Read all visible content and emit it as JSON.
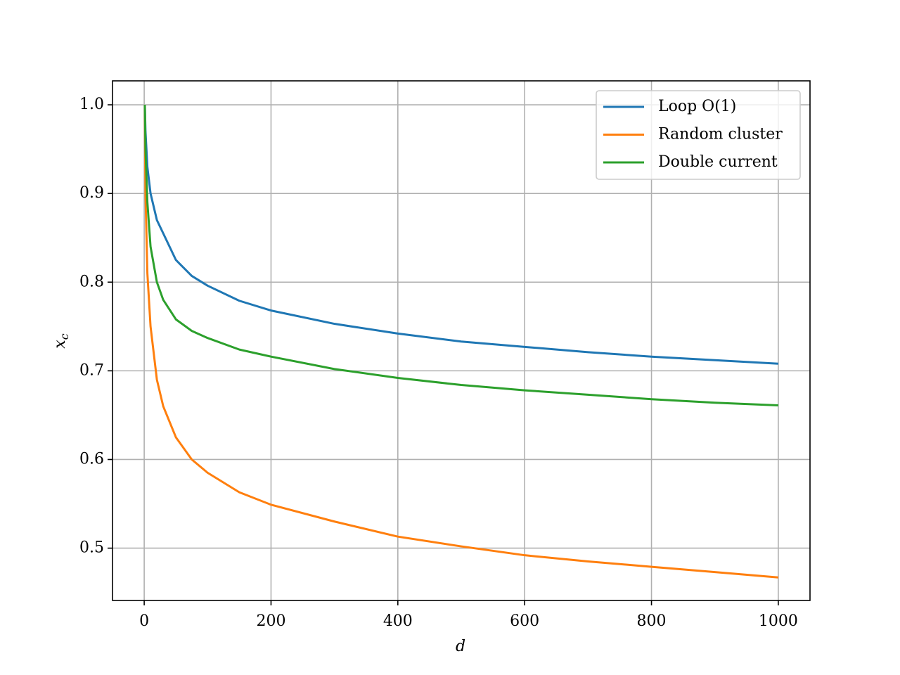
{
  "chart_data": {
    "type": "line",
    "xlabel": "d",
    "ylabel": "x",
    "ylabel_subscript": "c",
    "x": [
      1,
      2,
      5,
      10,
      20,
      30,
      50,
      75,
      100,
      150,
      200,
      300,
      400,
      500,
      600,
      700,
      800,
      900,
      1000
    ],
    "series": [
      {
        "name": "Loop O(1)",
        "color": "#1f77b4",
        "values": [
          1.0,
          0.97,
          0.93,
          0.9,
          0.87,
          0.855,
          0.825,
          0.807,
          0.796,
          0.779,
          0.768,
          0.753,
          0.742,
          0.733,
          0.727,
          0.721,
          0.716,
          0.712,
          0.708
        ]
      },
      {
        "name": "Random cluster",
        "color": "#ff7f0e",
        "values": [
          1.0,
          0.9,
          0.81,
          0.75,
          0.69,
          0.66,
          0.625,
          0.6,
          0.585,
          0.563,
          0.549,
          0.53,
          0.513,
          0.502,
          0.492,
          0.485,
          0.479,
          0.473,
          0.467
        ]
      },
      {
        "name": "Double current",
        "color": "#2ca02c",
        "values": [
          1.0,
          0.95,
          0.89,
          0.84,
          0.8,
          0.78,
          0.758,
          0.745,
          0.737,
          0.724,
          0.716,
          0.702,
          0.692,
          0.684,
          0.678,
          0.673,
          0.668,
          0.664,
          0.661
        ]
      }
    ],
    "xlim": [
      -50,
      1050
    ],
    "ylim": [
      0.441,
      1.027
    ],
    "xticks": [
      0,
      200,
      400,
      600,
      800,
      1000
    ],
    "yticks": [
      0.5,
      0.6,
      0.7,
      0.8,
      0.9,
      {
        "value": 1,
        "label": "1.0"
      }
    ],
    "grid": true,
    "legend": "upper right"
  }
}
